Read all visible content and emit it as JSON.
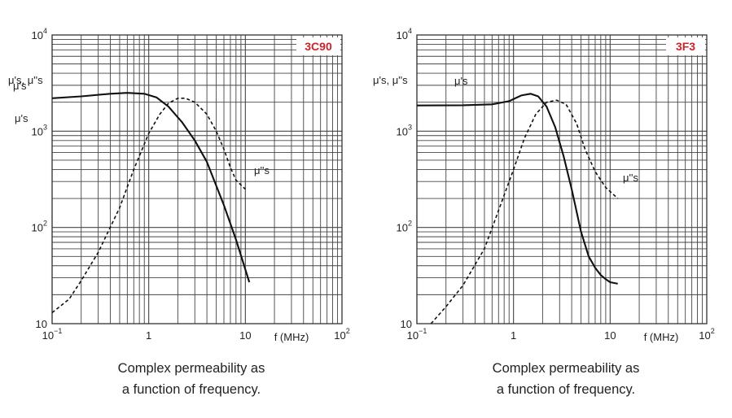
{
  "chart_data": [
    {
      "type": "line",
      "material": "3C90",
      "caption_line1": "Complex permeability as",
      "caption_line2": "a function of frequency.",
      "xlabel": "f (MHz)",
      "ylabel": "μ's, μ''s",
      "xscale": "log",
      "yscale": "log",
      "xlim": [
        0.1,
        100
      ],
      "ylim": [
        10,
        10000
      ],
      "grid": true,
      "x_ticks": [
        {
          "base": "10",
          "exp": "−1",
          "value": 0.1
        },
        {
          "base": "1",
          "exp": "",
          "value": 1
        },
        {
          "base": "10",
          "exp": "",
          "value": 10
        },
        {
          "base": "10",
          "exp": "2",
          "value": 100
        }
      ],
      "y_ticks": [
        {
          "base": "10",
          "exp": "",
          "value": 10
        },
        {
          "base": "10",
          "exp": "2",
          "value": 100
        },
        {
          "base": "10",
          "exp": "3",
          "value": 1000
        },
        {
          "base": "10",
          "exp": "4",
          "value": 10000
        }
      ],
      "series": [
        {
          "name": "μ's",
          "style": "solid",
          "x": [
            0.1,
            0.2,
            0.4,
            0.6,
            0.9,
            1.2,
            1.6,
            2.2,
            3,
            4,
            6,
            8,
            11
          ],
          "y": [
            2200,
            2300,
            2450,
            2500,
            2450,
            2250,
            1800,
            1250,
            800,
            480,
            170,
            75,
            27
          ]
        },
        {
          "name": "μ''s",
          "style": "dashed",
          "x": [
            0.1,
            0.15,
            0.2,
            0.3,
            0.5,
            0.7,
            1,
            1.3,
            1.6,
            2,
            2.4,
            3,
            4,
            5,
            6,
            7,
            8,
            10
          ],
          "y": [
            13,
            18,
            28,
            55,
            160,
            400,
            950,
            1500,
            1950,
            2200,
            2200,
            2000,
            1500,
            1000,
            650,
            420,
            310,
            250
          ]
        }
      ]
    },
    {
      "type": "line",
      "material": "3F3",
      "caption_line1": "Complex permeability as",
      "caption_line2": "a function of frequency.",
      "xlabel": "f (MHz)",
      "ylabel": "μ's, μ''s",
      "xscale": "log",
      "yscale": "log",
      "xlim": [
        0.1,
        100
      ],
      "ylim": [
        10,
        10000
      ],
      "grid": true,
      "x_ticks": [
        {
          "base": "10",
          "exp": "−1",
          "value": 0.1
        },
        {
          "base": "1",
          "exp": "",
          "value": 1
        },
        {
          "base": "10",
          "exp": "",
          "value": 10
        },
        {
          "base": "10",
          "exp": "2",
          "value": 100
        }
      ],
      "y_ticks": [
        {
          "base": "10",
          "exp": "",
          "value": 10
        },
        {
          "base": "10",
          "exp": "2",
          "value": 100
        },
        {
          "base": "10",
          "exp": "3",
          "value": 1000
        },
        {
          "base": "10",
          "exp": "4",
          "value": 10000
        }
      ],
      "series": [
        {
          "name": "μ's",
          "style": "solid",
          "x": [
            0.1,
            0.3,
            0.6,
            0.9,
            1.2,
            1.5,
            1.8,
            2.2,
            2.7,
            3.3,
            4,
            5,
            6,
            7,
            8,
            9,
            10,
            12
          ],
          "y": [
            1850,
            1860,
            1900,
            2050,
            2350,
            2450,
            2300,
            1800,
            1100,
            550,
            250,
            90,
            50,
            38,
            32,
            29,
            27,
            26
          ]
        },
        {
          "name": "μ''s",
          "style": "dashed",
          "x": [
            0.14,
            0.2,
            0.3,
            0.5,
            0.7,
            1,
            1.3,
            1.7,
            2.2,
            2.8,
            3.5,
            4.5,
            5.5,
            7,
            9,
            12
          ],
          "y": [
            10,
            15,
            25,
            60,
            150,
            400,
            850,
            1500,
            2000,
            2100,
            1900,
            1200,
            650,
            380,
            260,
            200
          ]
        }
      ]
    }
  ]
}
